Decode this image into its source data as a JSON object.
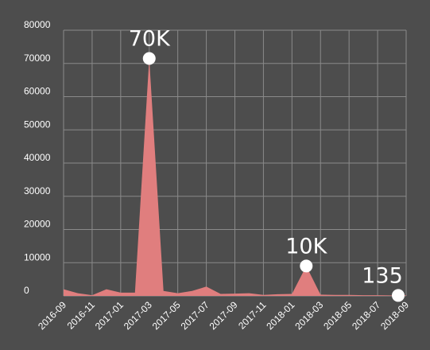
{
  "chart_data": {
    "type": "area",
    "x": [
      "2016-09",
      "2016-10",
      "2016-11",
      "2016-12",
      "2017-01",
      "2017-02",
      "2017-03",
      "2017-04",
      "2017-05",
      "2017-06",
      "2017-07",
      "2017-08",
      "2017-09",
      "2017-10",
      "2017-11",
      "2017-12",
      "2018-01",
      "2018-02",
      "2018-03",
      "2018-04",
      "2018-05",
      "2018-06",
      "2018-07",
      "2018-08",
      "2018-09"
    ],
    "x_tick_labels": [
      "2016-09",
      "2016-11",
      "2017-01",
      "2017-03",
      "2017-05",
      "2017-07",
      "2017-09",
      "2017-11",
      "2018-01",
      "2018-03",
      "2018-05",
      "2018-07",
      "2018-09"
    ],
    "series": [
      {
        "values": [
          2000,
          800,
          200,
          2000,
          1000,
          1000,
          71500,
          1500,
          800,
          1500,
          2800,
          600,
          700,
          800,
          300,
          500,
          600,
          9000,
          400,
          300,
          300,
          200,
          200,
          150,
          135
        ],
        "color": "#e07e7e"
      }
    ],
    "ylim": [
      0,
      80000
    ],
    "y_ticks": [
      "80000",
      "70000",
      "60000",
      "50000",
      "40000",
      "30000",
      "20000",
      "10000",
      "0"
    ],
    "grid": true,
    "annotations": [
      {
        "x": "2017-03",
        "y": 71500,
        "label": "70K"
      },
      {
        "x": "2018-02",
        "y": 9000,
        "label": "10K"
      },
      {
        "x": "2018-09",
        "y": 135,
        "label": "135"
      }
    ],
    "colors": {
      "background": "#4d4d4d",
      "grid": "#8a8a8a",
      "text": "#ffffff",
      "marker": "#ffffff"
    }
  }
}
